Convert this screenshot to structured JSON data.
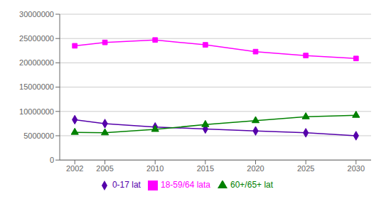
{
  "chart_data": {
    "type": "line",
    "x": [
      2002,
      2005,
      2010,
      2015,
      2020,
      2025,
      2030
    ],
    "series": [
      {
        "name": "0-17 lat",
        "color": "#5500aa",
        "marker": "diamond",
        "values": [
          8300000,
          7500000,
          6800000,
          6400000,
          6000000,
          5600000,
          5000000
        ]
      },
      {
        "name": "18-59/64 lata",
        "color": "#ff00ff",
        "marker": "square",
        "values": [
          23500000,
          24200000,
          24700000,
          23700000,
          22300000,
          21500000,
          20900000
        ]
      },
      {
        "name": "60+/65+ lat",
        "color": "#008000",
        "marker": "triangle",
        "values": [
          5700000,
          5600000,
          6300000,
          7300000,
          8100000,
          8900000,
          9200000
        ]
      }
    ],
    "xlim": [
      2000.5,
      2031.5
    ],
    "xticks": [
      2002,
      2005,
      2010,
      2015,
      2020,
      2025,
      2030
    ],
    "ylim": [
      0,
      30000000
    ],
    "yticks": [
      0,
      5000000,
      10000000,
      15000000,
      20000000,
      25000000,
      30000000
    ],
    "grid": true,
    "legend": "bottom"
  }
}
